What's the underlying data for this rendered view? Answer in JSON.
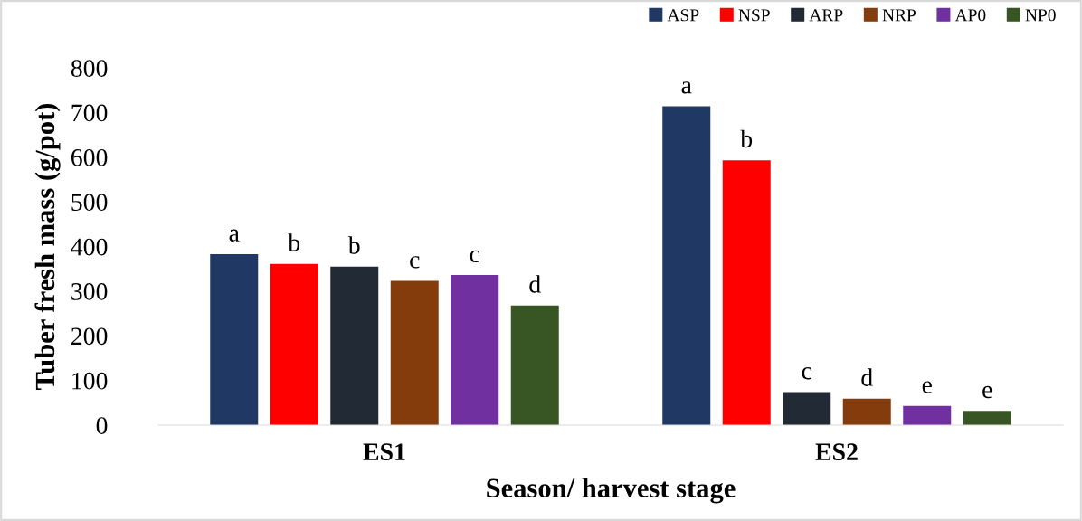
{
  "chart_data": {
    "type": "bar",
    "xlabel": "Season/ harvest stage",
    "ylabel": "Tuber fresh mass (g/pot)",
    "categories": [
      "ES1",
      "ES2"
    ],
    "series": [
      {
        "name": "ASP",
        "color": "#203864",
        "values": [
          383,
          714
        ],
        "value_labels": [
          "a",
          "a"
        ]
      },
      {
        "name": "NSP",
        "color": "#ff0000",
        "values": [
          361,
          593
        ],
        "value_labels": [
          "b",
          "b"
        ]
      },
      {
        "name": "ARP",
        "color": "#222a35",
        "values": [
          355,
          74
        ],
        "value_labels": [
          "b",
          "c"
        ]
      },
      {
        "name": "NRP",
        "color": "#843c0c",
        "values": [
          323,
          59
        ],
        "value_labels": [
          "c",
          "d"
        ]
      },
      {
        "name": "AP0",
        "color": "#7030a0",
        "values": [
          336,
          43
        ],
        "value_labels": [
          "c",
          "e"
        ]
      },
      {
        "name": "NP0",
        "color": "#375623",
        "values": [
          268,
          32
        ],
        "value_labels": [
          "d",
          "e"
        ]
      }
    ],
    "ylim": [
      0,
      800
    ],
    "yticks": [
      0,
      100,
      200,
      300,
      400,
      500,
      600,
      700,
      800
    ],
    "grid": false,
    "legend": "top right"
  }
}
